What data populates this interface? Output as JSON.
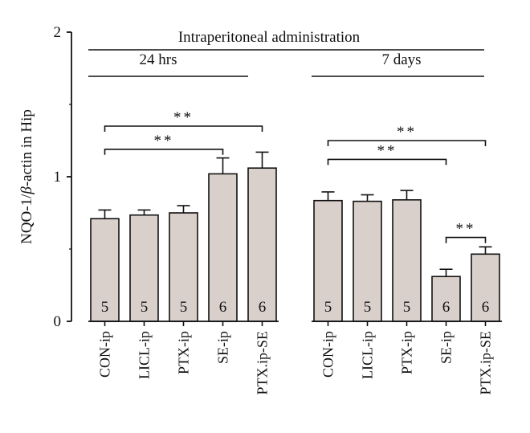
{
  "chart_data": {
    "type": "bar",
    "title": "Intraperitoneal administration",
    "ylabel_prefix": "NQO-1/",
    "ylabel_beta": "β",
    "ylabel_suffix": "-actin in Hip",
    "xlabel": "",
    "ylim": [
      0,
      2
    ],
    "yticks": [
      "0",
      "1",
      "2"
    ],
    "grid": false,
    "bar_color": "#d9d0cb",
    "groups": [
      {
        "label": "24 hrs",
        "categories": [
          "CON-ip",
          "LICL-ip",
          "PTX-ip",
          "SE-ip",
          "PTX.ip-SE"
        ],
        "values": [
          0.71,
          0.735,
          0.75,
          1.02,
          1.06
        ],
        "errors": [
          0.06,
          0.035,
          0.05,
          0.11,
          0.11
        ],
        "n": [
          "5",
          "5",
          "5",
          "6",
          "6"
        ]
      },
      {
        "label": "7 days",
        "categories": [
          "CON-ip",
          "LICL-ip",
          "PTX-ip",
          "SE-ip",
          "PTX.ip-SE"
        ],
        "values": [
          0.835,
          0.83,
          0.84,
          0.31,
          0.465
        ],
        "errors": [
          0.06,
          0.045,
          0.065,
          0.05,
          0.05
        ],
        "n": [
          "5",
          "5",
          "5",
          "6",
          "6"
        ]
      }
    ],
    "significance": [
      {
        "group": 0,
        "from": 0,
        "to": 3,
        "label": "**",
        "level": 1.19
      },
      {
        "group": 0,
        "from": 0,
        "to": 4,
        "label": "**",
        "level": 1.35
      },
      {
        "group": 1,
        "from": 0,
        "to": 3,
        "label": "**",
        "level": 1.12
      },
      {
        "group": 1,
        "from": 0,
        "to": 4,
        "label": "**",
        "level": 1.25
      },
      {
        "group": 1,
        "from": 3,
        "to": 4,
        "label": "**",
        "level": 0.58
      }
    ]
  }
}
